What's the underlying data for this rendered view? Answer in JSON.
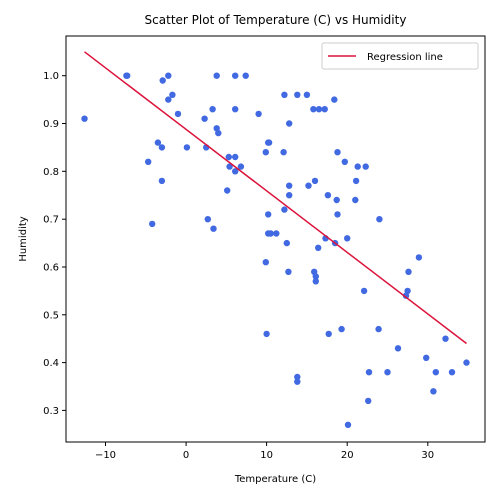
{
  "chart_data": {
    "type": "scatter",
    "title": "Scatter Plot of Temperature (C) vs Humidity",
    "xlabel": "Temperature (C)",
    "ylabel": "Humidity",
    "xlim": [
      -14.9,
      37.1
    ],
    "ylim": [
      0.234,
      1.083
    ],
    "xticks": [
      -10,
      0,
      10,
      20,
      30
    ],
    "xtick_labels": [
      "−10",
      "0",
      "10",
      "20",
      "30"
    ],
    "yticks": [
      0.3,
      0.4,
      0.5,
      0.6,
      0.7,
      0.8,
      0.9,
      1.0
    ],
    "ytick_labels": [
      "0.3",
      "0.4",
      "0.5",
      "0.6",
      "0.7",
      "0.8",
      "0.9",
      "1.0"
    ],
    "grid": false,
    "legend_placement": "top-right",
    "legend_entries": [
      "Regression line"
    ],
    "colors": {
      "points": "#4169e1",
      "regression": "#dc143c",
      "axes": "#000000"
    },
    "series": [
      {
        "kind": "points",
        "x": [
          -7.4,
          -7.3,
          -2.9,
          -2.2,
          -2.2,
          -1.7,
          -1.0,
          3.8,
          6.1,
          7.4,
          -12.6,
          2.3,
          3.3,
          3.8,
          6.1,
          9.0,
          12.2,
          12.8,
          13.8,
          15.0,
          15.8,
          16.5,
          17.2,
          18.4,
          -4.7,
          -3.5,
          -3.0,
          0.1,
          2.5,
          4.0,
          5.4,
          6.1,
          5.3,
          6.1,
          6.8,
          9.9,
          10.3,
          10.2,
          12.1,
          12.8,
          16.0,
          18.8,
          19.7,
          21.3,
          22.3,
          21.1,
          15.2,
          17.6,
          18.7,
          21.0,
          -3.0,
          -4.2,
          2.7,
          3.4,
          5.1,
          12.8,
          10.2,
          18.8,
          12.2,
          10.2,
          10.5,
          11.2,
          12.5,
          16.4,
          17.3,
          18.5,
          20.0,
          24.0,
          9.9,
          12.7,
          15.9,
          16.1,
          16.1,
          22.1,
          27.5,
          27.6,
          28.9,
          27.3,
          23.9,
          26.3,
          17.7,
          19.3,
          10.0,
          22.7,
          25.0,
          29.8,
          32.2,
          34.8,
          31.0,
          33.0,
          13.8,
          13.8,
          22.6,
          30.7,
          20.1
        ],
        "y": [
          1.0,
          1.0,
          0.99,
          1.0,
          0.95,
          0.96,
          0.92,
          1.0,
          1.0,
          1.0,
          0.91,
          0.91,
          0.93,
          0.89,
          0.93,
          0.92,
          0.96,
          0.9,
          0.96,
          0.96,
          0.93,
          0.93,
          0.93,
          0.95,
          0.82,
          0.86,
          0.85,
          0.85,
          0.85,
          0.88,
          0.81,
          0.83,
          0.83,
          0.8,
          0.81,
          0.84,
          0.86,
          0.86,
          0.84,
          0.77,
          0.78,
          0.84,
          0.82,
          0.81,
          0.81,
          0.78,
          0.77,
          0.75,
          0.74,
          0.74,
          0.78,
          0.69,
          0.7,
          0.68,
          0.76,
          0.75,
          0.71,
          0.71,
          0.72,
          0.67,
          0.67,
          0.67,
          0.65,
          0.64,
          0.66,
          0.65,
          0.66,
          0.7,
          0.61,
          0.59,
          0.59,
          0.58,
          0.57,
          0.55,
          0.55,
          0.59,
          0.62,
          0.54,
          0.47,
          0.43,
          0.46,
          0.47,
          0.46,
          0.38,
          0.38,
          0.41,
          0.45,
          0.4,
          0.38,
          0.38,
          0.37,
          0.36,
          0.32,
          0.34,
          0.27
        ]
      },
      {
        "kind": "line",
        "name": "Regression line",
        "x": [
          -12.6,
          34.8
        ],
        "y": [
          1.05,
          0.44
        ]
      }
    ]
  }
}
